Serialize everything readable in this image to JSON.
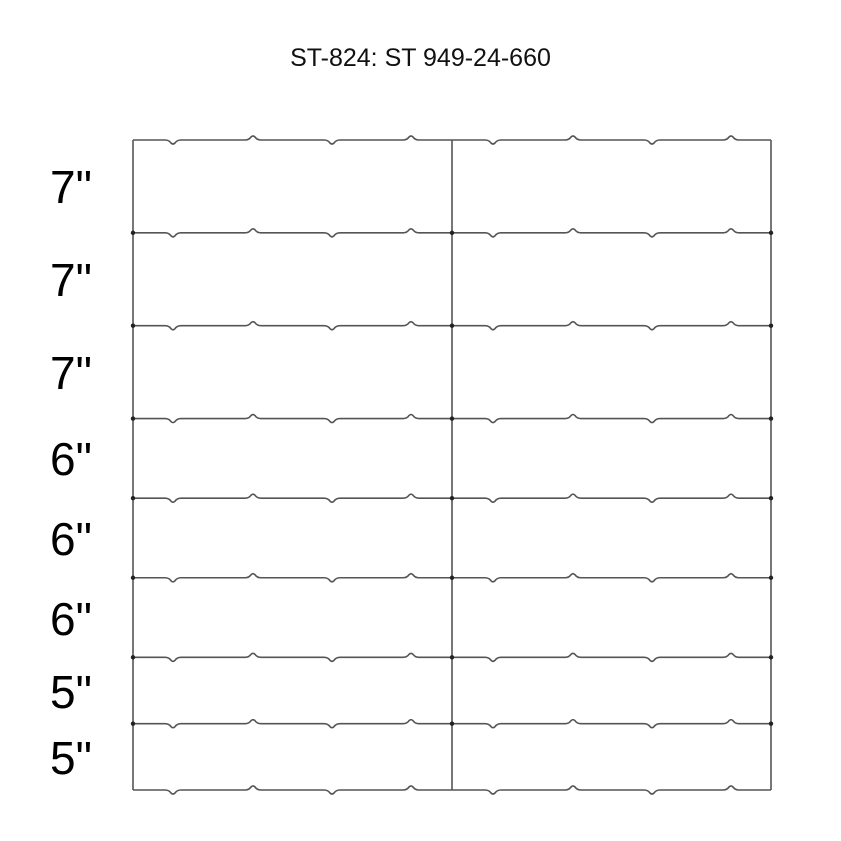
{
  "title": "ST-824: ST 949-24-660",
  "rows": [
    {
      "label": "7\"",
      "inches": 7
    },
    {
      "label": "7\"",
      "inches": 7
    },
    {
      "label": "7\"",
      "inches": 7
    },
    {
      "label": "6\"",
      "inches": 6
    },
    {
      "label": "6\"",
      "inches": 6
    },
    {
      "label": "6\"",
      "inches": 6
    },
    {
      "label": "5\"",
      "inches": 5
    },
    {
      "label": "5\"",
      "inches": 5
    }
  ],
  "columns": 2,
  "colors": {
    "line": "#555555",
    "text": "#000000"
  }
}
